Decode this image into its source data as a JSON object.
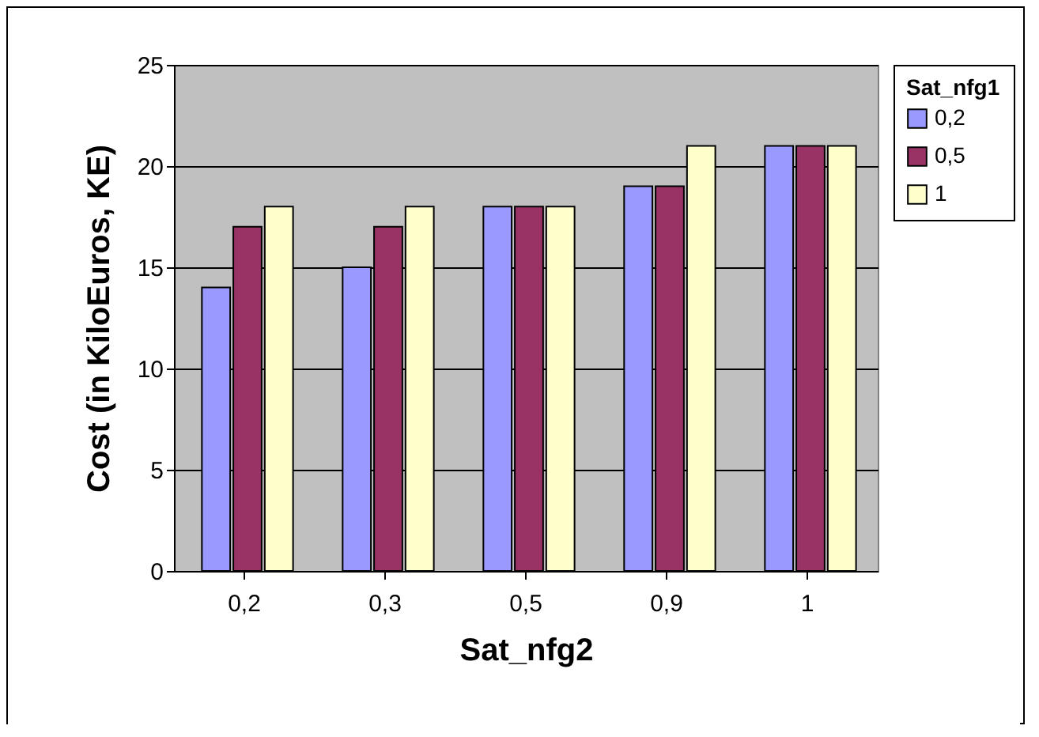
{
  "chart_data": {
    "type": "bar",
    "xlabel": "Sat_nfg2",
    "ylabel": "Cost (in KiloEuros, KE)",
    "legend_title": "Sat_nfg1",
    "categories": [
      "0,2",
      "0,3",
      "0,5",
      "0,9",
      "1"
    ],
    "series": [
      {
        "name": "0,2",
        "color": "#9999ff",
        "values": [
          14,
          15,
          18,
          19,
          21
        ]
      },
      {
        "name": "0,5",
        "color": "#993366",
        "values": [
          17,
          17,
          18,
          19,
          21
        ]
      },
      {
        "name": "1",
        "color": "#ffffcc",
        "values": [
          18,
          18,
          18,
          21,
          21
        ]
      }
    ],
    "ylim": [
      0,
      25
    ],
    "yticks": [
      0,
      5,
      10,
      15,
      20,
      25
    ],
    "grid": "y",
    "legend": "right"
  }
}
